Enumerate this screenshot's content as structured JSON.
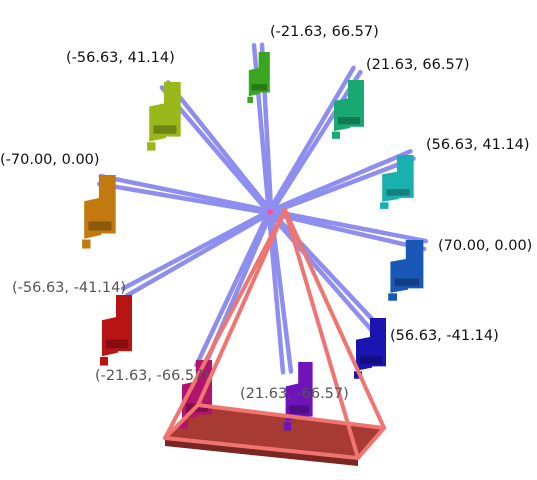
{
  "colors": {
    "spoke": "#8e8ef0",
    "spoke_edge": "#6f6fd0",
    "frame": "#f07470",
    "base": "#a83a34",
    "hub": "#ff4fa0"
  },
  "cars": [
    {
      "label": "(-21.63, 66.57)",
      "color": "#3aa51e"
    },
    {
      "label": "(21.63, 66.57)",
      "color": "#1aa872"
    },
    {
      "label": "(56.63, 41.14)",
      "color": "#1bb0b0"
    },
    {
      "label": "(70.00, 0.00)",
      "color": "#1a58b8"
    },
    {
      "label": "(56.63, -41.14)",
      "color": "#1a14b0"
    },
    {
      "label": "(21.63, -66.57)",
      "color": "#6f14b8"
    },
    {
      "label": "(-21.63, -66.57)",
      "color": "#b0146c"
    },
    {
      "label": "(-56.63, -41.14)",
      "color": "#b81414"
    },
    {
      "label": "(-70.00, 0.00)",
      "color": "#c27a10"
    },
    {
      "label": "(-56.63, 41.14)",
      "color": "#9ab81a"
    }
  ]
}
